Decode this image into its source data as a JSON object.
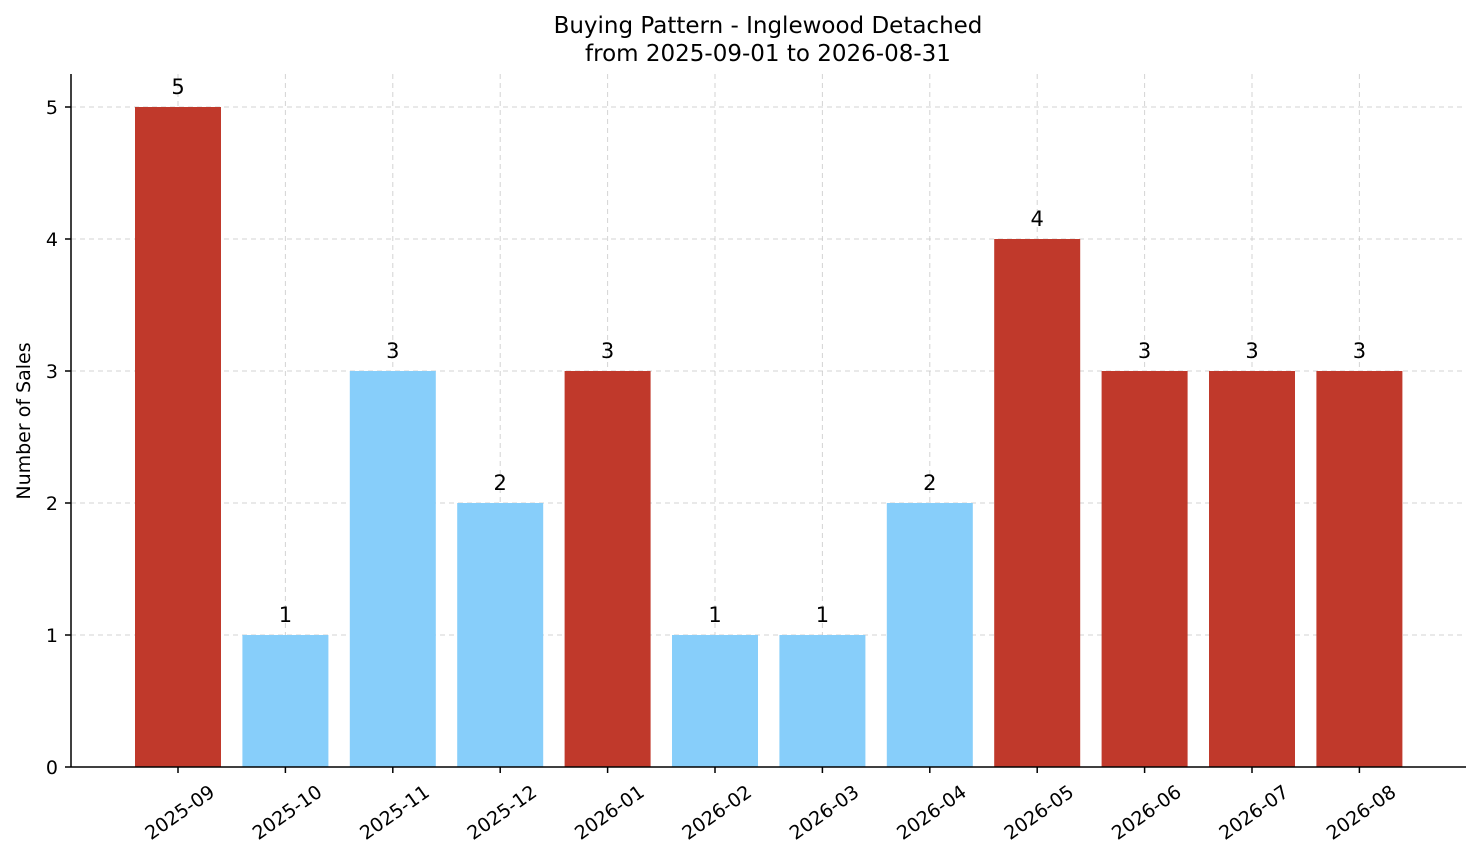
{
  "chart_data": {
    "type": "bar",
    "title": "Buying Pattern - Inglewood Detached",
    "subtitle": "from 2025-09-01 to 2026-08-31",
    "xlabel": "",
    "ylabel": "Number of Sales",
    "categories": [
      "2025-09",
      "2025-10",
      "2025-11",
      "2025-12",
      "2026-01",
      "2026-02",
      "2026-03",
      "2026-04",
      "2026-05",
      "2026-06",
      "2026-07",
      "2026-08"
    ],
    "values": [
      5,
      1,
      3,
      2,
      3,
      1,
      1,
      2,
      4,
      3,
      3,
      3
    ],
    "bar_colors": [
      "#c0392b",
      "#87cefa",
      "#87cefa",
      "#87cefa",
      "#c0392b",
      "#87cefa",
      "#87cefa",
      "#87cefa",
      "#c0392b",
      "#c0392b",
      "#c0392b",
      "#c0392b"
    ],
    "yticks": [
      0,
      1,
      2,
      3,
      4,
      5
    ],
    "ylim": [
      0,
      5.25
    ],
    "grid": true,
    "data_labels": true
  }
}
